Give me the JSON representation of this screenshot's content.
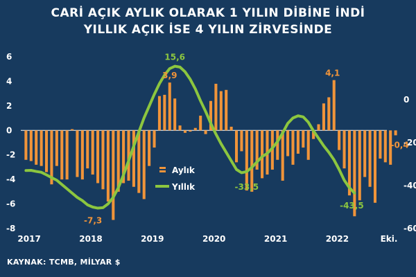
{
  "title_line1": "CARİ AÇIK AYLIK OLARAK 1 YILIN DİBİNE İNDİ",
  "title_line2": "YILLIK AÇIK İSE 4 YILIN ZİRVESİNDE",
  "source": "KAYNAK: TCMB, MİLYAR $",
  "colors": {
    "background": "#173a5e",
    "bar": "#f0943a",
    "line": "#8cc63f",
    "axis": "#ffffff",
    "bar_label": "#f0943a",
    "line_label": "#8cc63f"
  },
  "chart_data": {
    "type": "bar+line",
    "x_tick_labels": [
      "2017",
      "2018",
      "2019",
      "2020",
      "2021",
      "2022",
      "Eki."
    ],
    "left_axis": {
      "ticks": [
        6,
        4,
        2,
        0,
        -2,
        -4,
        -6,
        -8
      ],
      "range": [
        -8,
        6
      ]
    },
    "right_axis": {
      "ticks": [
        0,
        -20,
        -40,
        -60
      ],
      "range": [
        -60,
        20
      ],
      "tick_labels_shown": [
        "0",
        "-20",
        "-40",
        "-60"
      ]
    },
    "legend": [
      {
        "name": "Aylık",
        "marker": "bar"
      },
      {
        "name": "Yıllık",
        "marker": "line"
      }
    ],
    "legend_position": "center",
    "series": [
      {
        "name": "Aylık",
        "type": "bar",
        "axis": "left",
        "values": [
          -2.4,
          -2.5,
          -2.8,
          -2.9,
          -3.4,
          -4.4,
          -2.9,
          -4.0,
          -4.0,
          0.1,
          -3.8,
          -4.0,
          -3.1,
          -3.6,
          -4.3,
          -4.8,
          -5.8,
          -7.3,
          -5.0,
          -4.3,
          -4.1,
          -4.6,
          -5.1,
          -5.6,
          -2.9,
          -1.4,
          2.8,
          2.9,
          3.9,
          2.6,
          0.4,
          -0.2,
          -0.1,
          0.2,
          1.2,
          -0.3,
          2.4,
          3.8,
          3.2,
          3.3,
          0.3,
          -2.6,
          -1.7,
          -4.9,
          -5.0,
          -3.2,
          -3.9,
          -3.6,
          -3.2,
          -2.4,
          -4.1,
          -2.1,
          -2.8,
          -1.9,
          -1.4,
          -2.4,
          -0.7,
          0.5,
          2.2,
          2.7,
          4.1,
          -1.6,
          -3.1,
          -5.3,
          -7.0,
          -5.7,
          -3.8,
          -4.6,
          -5.9,
          -2.3,
          -2.6,
          -2.8,
          -0.4
        ]
      },
      {
        "name": "Yıllık",
        "type": "line",
        "axis": "right",
        "values": [
          -33.0,
          -32.9,
          -33.4,
          -33.8,
          -35.0,
          -36.3,
          -37.5,
          -39.5,
          -41.5,
          -43.5,
          -45.5,
          -47.0,
          -49.0,
          -50.0,
          -50.5,
          -50.3,
          -48.5,
          -45.5,
          -41.0,
          -35.0,
          -28.5,
          -21.5,
          -15.0,
          -8.5,
          -3.0,
          2.5,
          7.5,
          11.5,
          14.5,
          15.6,
          15.2,
          13.0,
          9.5,
          5.0,
          -0.5,
          -5.5,
          -11.0,
          -16.0,
          -20.5,
          -24.5,
          -28.5,
          -32.5,
          -34.0,
          -33.5,
          -31.5,
          -29.0,
          -26.5,
          -25.0,
          -22.5,
          -19.5,
          -15.5,
          -11.0,
          -8.5,
          -7.5,
          -8.0,
          -10.5,
          -14.5,
          -18.0,
          -21.5,
          -24.5,
          -28.0,
          -32.5,
          -37.5,
          -41.0,
          -43.5
        ]
      }
    ],
    "data_labels": [
      {
        "series": "Aylık",
        "text": "-7,3"
      },
      {
        "series": "Aylık",
        "text": "3,9"
      },
      {
        "series": "Aylık",
        "text": "4,1"
      },
      {
        "series": "Aylık",
        "text": "-0,4"
      },
      {
        "series": "Yıllık",
        "text": "15,6"
      },
      {
        "series": "Yıllık",
        "text": "-33,5"
      },
      {
        "series": "Yıllık",
        "text": "-43,5"
      }
    ]
  }
}
